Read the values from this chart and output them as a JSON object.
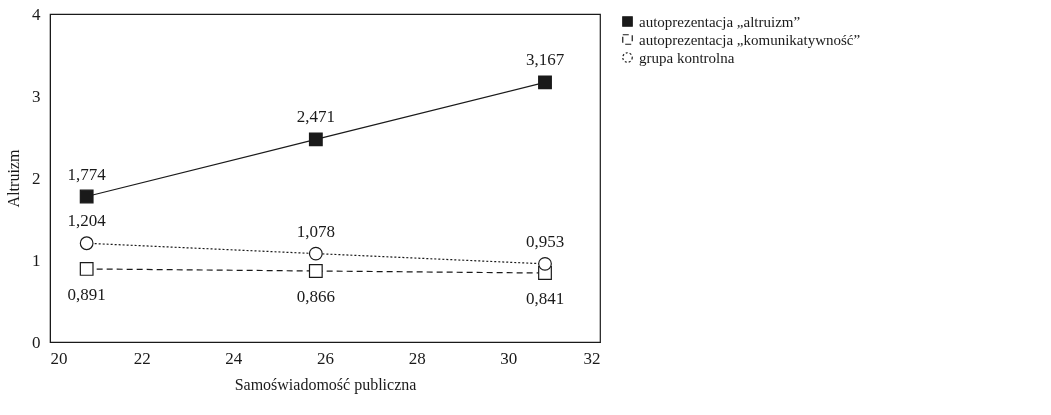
{
  "chart_data": {
    "type": "line",
    "xlabel": "Samoświadomość publiczna",
    "ylabel": "Altruizm",
    "x": [
      20.8,
      25.8,
      30.8
    ],
    "series": [
      {
        "name": "autoprezentacja „altruizm”",
        "color": "#1a1a1a",
        "values": [
          1.774,
          2.471,
          3.167
        ],
        "value_labels": [
          "1,774",
          "2,471",
          "3,167"
        ],
        "marker": "square",
        "line_style": "solid"
      },
      {
        "name": "autoprezentacja „komunikatywność”",
        "color": "#1a1a1a",
        "values": [
          0.891,
          0.866,
          0.841
        ],
        "value_labels": [
          "0,891",
          "0,866",
          "0,841"
        ],
        "marker": "square",
        "line_style": "dashed"
      },
      {
        "name": "grupa kontrolna",
        "color": "#1a1a1a",
        "values": [
          1.204,
          1.078,
          0.953
        ],
        "value_labels": [
          "1,204",
          "1,078",
          "0,953"
        ],
        "marker": "circle",
        "line_style": "dotted"
      }
    ],
    "xlim": [
      20,
      32
    ],
    "xticks": [
      20,
      22,
      24,
      26,
      28,
      30,
      32
    ],
    "ylim": [
      0,
      4
    ],
    "yticks": [
      0,
      1,
      2,
      3,
      4
    ],
    "grid": false,
    "legend": "right"
  }
}
